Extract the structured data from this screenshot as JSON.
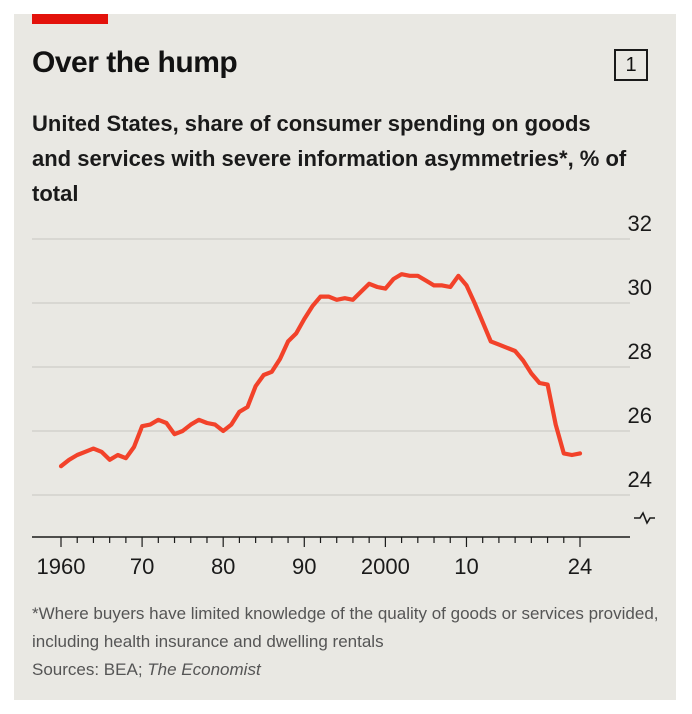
{
  "header": {
    "title": "Over the hump",
    "chart_number": "1",
    "subtitle": "United States, share of consumer spending on goods and services with severe information asymmetries*, % of total"
  },
  "footer": {
    "note": "*Where buyers have limited knowledge of the quality of goods or services provided, including health insurance and dwelling rentals",
    "sources_label": "Sources: BEA; ",
    "sources_italic": "The Economist"
  },
  "colors": {
    "accent": "#e3120b",
    "line": "#f2422a",
    "grid": "#c8c6c0",
    "background": "#e9e8e3"
  },
  "chart_data": {
    "type": "line",
    "title": "Over the hump",
    "subtitle": "United States, share of consumer spending on goods and services with severe information asymmetries*, % of total",
    "xlabel": "",
    "ylabel": "",
    "xlim": [
      1960,
      2024
    ],
    "ylim": [
      24,
      32
    ],
    "y_axis_side": "right",
    "y_axis_break": true,
    "grid": "horizontal",
    "y_ticks": [
      24,
      26,
      28,
      30,
      32
    ],
    "y_tick_labels": [
      "24",
      "26",
      "28",
      "30",
      "32"
    ],
    "x_ticks": [
      1960,
      1970,
      1980,
      1990,
      2000,
      2010,
      2024
    ],
    "x_tick_labels": [
      "1960",
      "70",
      "80",
      "90",
      "2000",
      "10",
      "24"
    ],
    "series": [
      {
        "x": [
          1960,
          1961,
          1962,
          1963,
          1964,
          1965,
          1966,
          1967,
          1968,
          1969,
          1970,
          1971,
          1972,
          1973,
          1974,
          1975,
          1976,
          1977,
          1978,
          1979,
          1980,
          1981,
          1982,
          1983,
          1984,
          1985,
          1986,
          1987,
          1988,
          1989,
          1990,
          1991,
          1992,
          1993,
          1994,
          1995,
          1996,
          1997,
          1998,
          1999,
          2000,
          2001,
          2002,
          2003,
          2004,
          2005,
          2006,
          2007,
          2008,
          2009,
          2010,
          2011,
          2012,
          2013,
          2014,
          2015,
          2016,
          2017,
          2018,
          2019,
          2020,
          2021,
          2022,
          2023,
          2024
        ],
        "values": [
          24.9,
          25.1,
          25.25,
          25.35,
          25.45,
          25.35,
          25.1,
          25.25,
          25.15,
          25.5,
          26.15,
          26.2,
          26.35,
          26.25,
          25.9,
          26.0,
          26.2,
          26.35,
          26.25,
          26.2,
          26.0,
          26.2,
          26.6,
          26.75,
          27.4,
          27.75,
          27.85,
          28.25,
          28.8,
          29.05,
          29.5,
          29.9,
          30.2,
          30.2,
          30.1,
          30.15,
          30.1,
          30.35,
          30.6,
          30.5,
          30.45,
          30.75,
          30.9,
          30.85,
          30.85,
          30.7,
          30.55,
          30.55,
          30.5,
          30.85,
          30.55,
          30.0,
          29.4,
          28.8,
          28.7,
          28.6,
          28.5,
          28.2,
          27.8,
          27.5,
          27.45,
          26.2,
          25.3,
          25.25,
          25.3
        ]
      }
    ]
  }
}
